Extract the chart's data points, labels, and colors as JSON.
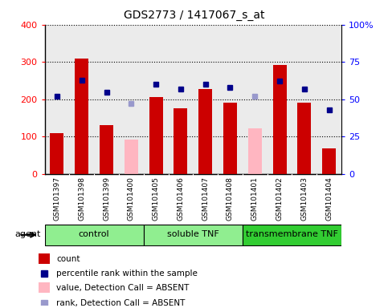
{
  "title": "GDS2773 / 1417067_s_at",
  "samples": [
    "GSM101397",
    "GSM101398",
    "GSM101399",
    "GSM101400",
    "GSM101405",
    "GSM101406",
    "GSM101407",
    "GSM101408",
    "GSM101401",
    "GSM101402",
    "GSM101403",
    "GSM101404"
  ],
  "count_values": [
    110,
    310,
    130,
    null,
    207,
    175,
    228,
    192,
    null,
    293,
    192,
    68
  ],
  "absent_count_values": [
    null,
    null,
    null,
    92,
    null,
    null,
    null,
    null,
    122,
    null,
    null,
    null
  ],
  "percentile_values": [
    52,
    63,
    55,
    null,
    60,
    57,
    60,
    58,
    null,
    62,
    57,
    43
  ],
  "absent_percentile_values": [
    null,
    null,
    null,
    47,
    null,
    null,
    null,
    null,
    52,
    null,
    null,
    null
  ],
  "groups": [
    {
      "label": "control",
      "start": 0,
      "end": 4
    },
    {
      "label": "soluble TNF",
      "start": 4,
      "end": 8
    },
    {
      "label": "transmembrane TNF",
      "start": 8,
      "end": 12
    }
  ],
  "group_colors": [
    "#90EE90",
    "#90EE90",
    "#32CD32"
  ],
  "ylim_left": [
    0,
    400
  ],
  "ylim_right": [
    0,
    100
  ],
  "yticks_left": [
    0,
    100,
    200,
    300,
    400
  ],
  "yticks_right": [
    0,
    25,
    50,
    75,
    100
  ],
  "yticklabels_right": [
    "0",
    "25",
    "50",
    "75",
    "100%"
  ],
  "bar_color_present": "#CC0000",
  "bar_color_absent": "#FFB6C1",
  "dot_color_present": "#00008B",
  "dot_color_absent": "#9999CC",
  "bar_width": 0.55,
  "plot_bg_color": "#ffffff",
  "tick_area_color": "#C8C8C8",
  "agent_label": "agent",
  "legend_items": [
    {
      "color": "#CC0000",
      "type": "bar",
      "label": "count"
    },
    {
      "color": "#00008B",
      "type": "square",
      "label": "percentile rank within the sample"
    },
    {
      "color": "#FFB6C1",
      "type": "bar",
      "label": "value, Detection Call = ABSENT"
    },
    {
      "color": "#9999CC",
      "type": "square",
      "label": "rank, Detection Call = ABSENT"
    }
  ]
}
